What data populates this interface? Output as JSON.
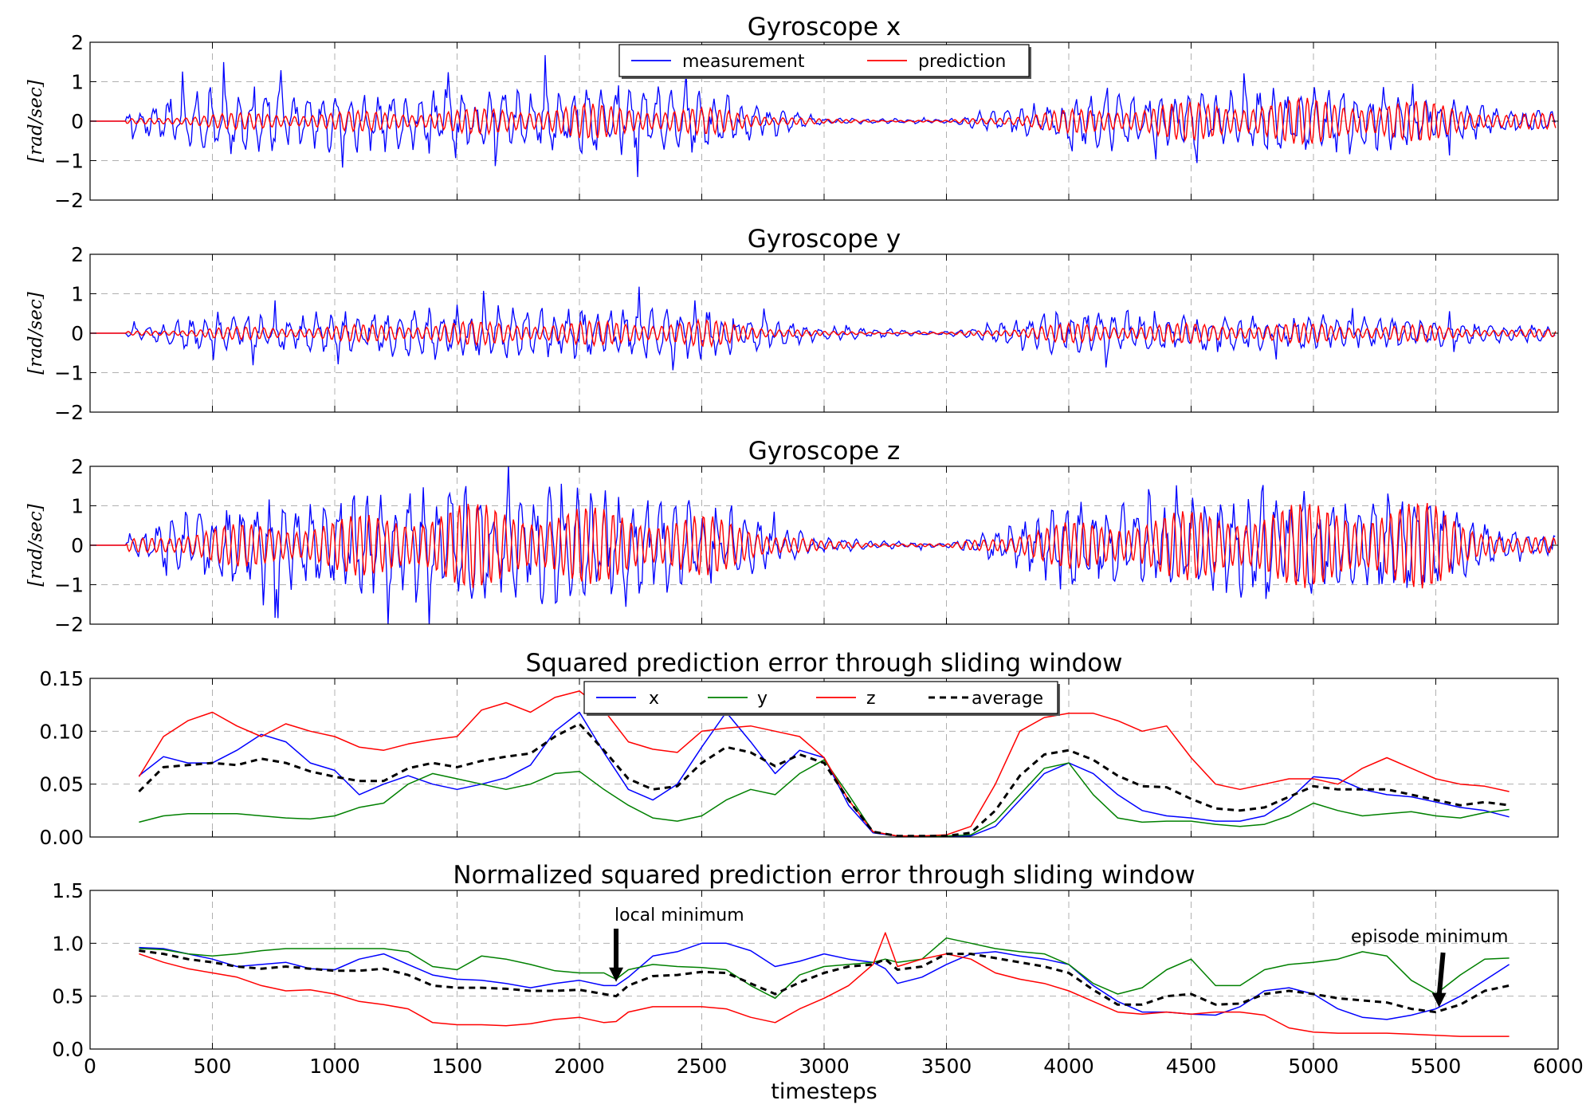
{
  "figure": {
    "xlabel": "timesteps",
    "xlim": [
      0,
      6000
    ],
    "xticks": [
      0,
      500,
      1000,
      1500,
      2000,
      2500,
      3000,
      3500,
      4000,
      4500,
      5000,
      5500,
      6000
    ],
    "colors": {
      "measurement": "#0000ff",
      "prediction": "#ff0000",
      "x": "#0000ff",
      "y": "#008000",
      "z": "#ff0000",
      "average": "#000000"
    }
  },
  "chart_data": [
    {
      "type": "line",
      "title": "Gyroscope x",
      "ylabel": "[rad/sec]",
      "ylim": [
        -2,
        2
      ],
      "yticks": [
        -2,
        -1,
        0,
        1,
        2
      ],
      "grid": true,
      "legend": {
        "placement": "top-center",
        "entries": [
          "measurement",
          "prediction"
        ]
      },
      "x": [
        0,
        500,
        1000,
        1500,
        2000,
        2500,
        3000,
        3500,
        4000,
        4500,
        5000,
        5500,
        5800
      ],
      "series": [
        {
          "name": "measurement",
          "amplitude": [
            0,
            0.9,
            0.8,
            0.8,
            1.0,
            0.9,
            0.1,
            0.05,
            0.7,
            0.8,
            0.9,
            0.7,
            0.3
          ]
        },
        {
          "name": "prediction",
          "amplitude": [
            0,
            0.2,
            0.25,
            0.3,
            0.45,
            0.35,
            0.05,
            0.02,
            0.3,
            0.5,
            0.6,
            0.5,
            0.2
          ]
        }
      ]
    },
    {
      "type": "line",
      "title": "Gyroscope y",
      "ylabel": "[rad/sec]",
      "ylim": [
        -2,
        2
      ],
      "yticks": [
        -2,
        -1,
        0,
        1,
        2
      ],
      "grid": true,
      "x": [
        0,
        500,
        1000,
        1500,
        2000,
        2500,
        3000,
        3500,
        4000,
        4500,
        5000,
        5500,
        5800
      ],
      "series": [
        {
          "name": "measurement",
          "amplitude": [
            0,
            0.5,
            0.6,
            0.8,
            0.7,
            0.7,
            0.2,
            0.05,
            0.7,
            0.5,
            0.5,
            0.4,
            0.2
          ]
        },
        {
          "name": "prediction",
          "amplitude": [
            0,
            0.15,
            0.2,
            0.3,
            0.3,
            0.35,
            0.05,
            0.02,
            0.25,
            0.25,
            0.25,
            0.2,
            0.1
          ]
        }
      ]
    },
    {
      "type": "line",
      "title": "Gyroscope z",
      "ylabel": "[rad/sec]",
      "ylim": [
        -2,
        2
      ],
      "yticks": [
        -2,
        -1,
        0,
        1,
        2
      ],
      "grid": true,
      "x": [
        0,
        500,
        1000,
        1500,
        2000,
        2500,
        3000,
        3500,
        4000,
        4500,
        5000,
        5500,
        5800
      ],
      "series": [
        {
          "name": "measurement",
          "amplitude": [
            0,
            1.1,
            1.3,
            1.6,
            1.5,
            1.2,
            0.2,
            0.05,
            1.2,
            1.3,
            1.4,
            1.3,
            0.3
          ]
        },
        {
          "name": "prediction",
          "amplitude": [
            0,
            0.5,
            0.7,
            1.1,
            1.0,
            0.8,
            0.1,
            0.03,
            0.6,
            0.9,
            1.1,
            1.1,
            0.2
          ]
        }
      ]
    },
    {
      "type": "line",
      "title": "Squared prediction error through sliding window",
      "ylabel": "",
      "ylim": [
        0,
        0.15
      ],
      "yticks": [
        0.0,
        0.05,
        0.1,
        0.15
      ],
      "ytick_labels": [
        "0.00",
        "0.05",
        "0.10",
        "0.15"
      ],
      "grid": true,
      "legend": {
        "placement": "top-center",
        "entries": [
          "x",
          "y",
          "z",
          "average"
        ]
      },
      "x": [
        200,
        300,
        400,
        500,
        600,
        700,
        800,
        900,
        1000,
        1100,
        1200,
        1300,
        1400,
        1500,
        1600,
        1700,
        1800,
        1900,
        2000,
        2100,
        2200,
        2300,
        2400,
        2500,
        2600,
        2700,
        2800,
        2900,
        3000,
        3100,
        3200,
        3300,
        3400,
        3500,
        3600,
        3700,
        3800,
        3900,
        4000,
        4100,
        4200,
        4300,
        4400,
        4500,
        4600,
        4700,
        4800,
        4900,
        5000,
        5100,
        5200,
        5300,
        5400,
        5500,
        5600,
        5700,
        5800
      ],
      "series": [
        {
          "name": "x",
          "dash": false,
          "values": [
            0.058,
            0.076,
            0.07,
            0.07,
            0.082,
            0.097,
            0.09,
            0.07,
            0.063,
            0.04,
            0.05,
            0.058,
            0.05,
            0.045,
            0.05,
            0.056,
            0.068,
            0.1,
            0.118,
            0.08,
            0.045,
            0.035,
            0.05,
            0.085,
            0.118,
            0.09,
            0.06,
            0.082,
            0.075,
            0.03,
            0.004,
            0.001,
            0.001,
            0.001,
            0.001,
            0.01,
            0.035,
            0.06,
            0.07,
            0.06,
            0.04,
            0.025,
            0.02,
            0.018,
            0.015,
            0.015,
            0.02,
            0.035,
            0.057,
            0.055,
            0.045,
            0.04,
            0.038,
            0.033,
            0.028,
            0.025,
            0.019
          ]
        },
        {
          "name": "y",
          "dash": false,
          "values": [
            0.014,
            0.02,
            0.022,
            0.022,
            0.022,
            0.02,
            0.018,
            0.017,
            0.02,
            0.028,
            0.032,
            0.05,
            0.06,
            0.055,
            0.05,
            0.045,
            0.05,
            0.06,
            0.062,
            0.045,
            0.03,
            0.018,
            0.015,
            0.02,
            0.035,
            0.045,
            0.04,
            0.06,
            0.073,
            0.04,
            0.005,
            0.001,
            0.001,
            0.001,
            0.002,
            0.015,
            0.04,
            0.065,
            0.07,
            0.04,
            0.018,
            0.014,
            0.015,
            0.015,
            0.012,
            0.01,
            0.012,
            0.02,
            0.032,
            0.025,
            0.02,
            0.022,
            0.024,
            0.02,
            0.018,
            0.023,
            0.026
          ]
        },
        {
          "name": "z",
          "dash": false,
          "values": [
            0.057,
            0.095,
            0.11,
            0.118,
            0.105,
            0.095,
            0.107,
            0.1,
            0.095,
            0.085,
            0.082,
            0.088,
            0.092,
            0.095,
            0.12,
            0.127,
            0.118,
            0.132,
            0.138,
            0.12,
            0.09,
            0.083,
            0.08,
            0.1,
            0.103,
            0.105,
            0.1,
            0.095,
            0.075,
            0.035,
            0.005,
            0.001,
            0.001,
            0.002,
            0.01,
            0.05,
            0.1,
            0.113,
            0.117,
            0.117,
            0.11,
            0.1,
            0.105,
            0.075,
            0.05,
            0.045,
            0.05,
            0.055,
            0.055,
            0.05,
            0.065,
            0.075,
            0.065,
            0.055,
            0.05,
            0.048,
            0.043
          ]
        },
        {
          "name": "average",
          "dash": true,
          "values": [
            0.043,
            0.066,
            0.068,
            0.07,
            0.068,
            0.074,
            0.07,
            0.062,
            0.057,
            0.053,
            0.053,
            0.065,
            0.07,
            0.066,
            0.072,
            0.076,
            0.079,
            0.095,
            0.107,
            0.082,
            0.055,
            0.045,
            0.048,
            0.07,
            0.085,
            0.08,
            0.067,
            0.078,
            0.07,
            0.035,
            0.005,
            0.001,
            0.001,
            0.001,
            0.004,
            0.025,
            0.058,
            0.078,
            0.082,
            0.073,
            0.058,
            0.048,
            0.047,
            0.036,
            0.027,
            0.025,
            0.028,
            0.038,
            0.048,
            0.045,
            0.045,
            0.045,
            0.04,
            0.035,
            0.03,
            0.033,
            0.03
          ]
        }
      ]
    },
    {
      "type": "line",
      "title": "Normalized squared prediction error through sliding window",
      "ylabel": "",
      "ylim": [
        0,
        1.5
      ],
      "yticks": [
        0.0,
        0.5,
        1.0,
        1.5
      ],
      "ytick_labels": [
        "0.0",
        "0.5",
        "1.0",
        "1.5"
      ],
      "grid": true,
      "x": [
        200,
        300,
        400,
        500,
        600,
        700,
        800,
        900,
        1000,
        1100,
        1200,
        1300,
        1400,
        1500,
        1600,
        1700,
        1800,
        1900,
        2000,
        2100,
        2150,
        2200,
        2300,
        2400,
        2500,
        2600,
        2700,
        2800,
        2900,
        3000,
        3100,
        3200,
        3250,
        3300,
        3400,
        3500,
        3600,
        3700,
        3800,
        3900,
        4000,
        4100,
        4200,
        4300,
        4400,
        4500,
        4600,
        4700,
        4800,
        4900,
        5000,
        5100,
        5200,
        5300,
        5400,
        5500,
        5600,
        5700,
        5800
      ],
      "annotations": [
        {
          "text": "local minimum",
          "x": 2150,
          "y": 0.62
        },
        {
          "text": "episode minimum",
          "x": 5520,
          "y": 0.38
        }
      ],
      "series": [
        {
          "name": "x",
          "dash": false,
          "values": [
            0.96,
            0.95,
            0.9,
            0.85,
            0.78,
            0.8,
            0.82,
            0.76,
            0.75,
            0.85,
            0.9,
            0.8,
            0.7,
            0.66,
            0.65,
            0.62,
            0.58,
            0.62,
            0.65,
            0.6,
            0.6,
            0.68,
            0.88,
            0.92,
            1.0,
            1.0,
            0.93,
            0.78,
            0.83,
            0.9,
            0.85,
            0.82,
            0.76,
            0.62,
            0.68,
            0.8,
            0.9,
            0.92,
            0.88,
            0.85,
            0.8,
            0.6,
            0.45,
            0.35,
            0.35,
            0.33,
            0.32,
            0.4,
            0.55,
            0.58,
            0.52,
            0.38,
            0.3,
            0.28,
            0.32,
            0.38,
            0.5,
            0.65,
            0.8
          ]
        },
        {
          "name": "y",
          "dash": false,
          "values": [
            0.95,
            0.94,
            0.9,
            0.88,
            0.9,
            0.93,
            0.95,
            0.95,
            0.95,
            0.95,
            0.95,
            0.92,
            0.78,
            0.75,
            0.88,
            0.85,
            0.8,
            0.74,
            0.72,
            0.72,
            0.66,
            0.75,
            0.8,
            0.78,
            0.77,
            0.75,
            0.6,
            0.48,
            0.7,
            0.78,
            0.8,
            0.82,
            0.85,
            0.82,
            0.85,
            1.05,
            1.0,
            0.95,
            0.92,
            0.9,
            0.8,
            0.62,
            0.52,
            0.58,
            0.75,
            0.85,
            0.6,
            0.6,
            0.75,
            0.8,
            0.82,
            0.85,
            0.92,
            0.88,
            0.65,
            0.52,
            0.7,
            0.85,
            0.86
          ]
        },
        {
          "name": "z",
          "dash": false,
          "values": [
            0.9,
            0.82,
            0.76,
            0.72,
            0.68,
            0.6,
            0.55,
            0.56,
            0.52,
            0.45,
            0.42,
            0.38,
            0.25,
            0.23,
            0.23,
            0.22,
            0.24,
            0.28,
            0.3,
            0.25,
            0.26,
            0.35,
            0.4,
            0.4,
            0.4,
            0.38,
            0.3,
            0.25,
            0.38,
            0.48,
            0.6,
            0.8,
            1.1,
            0.78,
            0.85,
            0.9,
            0.85,
            0.72,
            0.66,
            0.62,
            0.55,
            0.45,
            0.35,
            0.33,
            0.35,
            0.33,
            0.35,
            0.35,
            0.32,
            0.2,
            0.16,
            0.15,
            0.15,
            0.15,
            0.14,
            0.13,
            0.12,
            0.12,
            0.12
          ]
        },
        {
          "name": "average",
          "dash": true,
          "values": [
            0.93,
            0.9,
            0.85,
            0.82,
            0.78,
            0.76,
            0.78,
            0.76,
            0.74,
            0.74,
            0.76,
            0.7,
            0.6,
            0.58,
            0.58,
            0.57,
            0.55,
            0.55,
            0.56,
            0.52,
            0.5,
            0.6,
            0.69,
            0.7,
            0.73,
            0.72,
            0.62,
            0.52,
            0.63,
            0.72,
            0.78,
            0.8,
            0.85,
            0.75,
            0.78,
            0.9,
            0.9,
            0.86,
            0.82,
            0.78,
            0.72,
            0.56,
            0.42,
            0.42,
            0.5,
            0.52,
            0.42,
            0.43,
            0.52,
            0.55,
            0.52,
            0.48,
            0.46,
            0.44,
            0.38,
            0.35,
            0.42,
            0.55,
            0.6
          ]
        }
      ]
    }
  ]
}
